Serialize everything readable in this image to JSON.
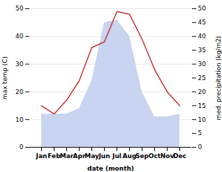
{
  "chart_data": {
    "type": "line",
    "xlabel": "date (month)",
    "ylabel": "max temp (C)",
    "y2label": "med. precipitation (kg/m2)",
    "categories": [
      "Jan",
      "Feb",
      "Mar",
      "Apr",
      "May",
      "Jun",
      "Jul",
      "Aug",
      "Sep",
      "Oct",
      "Nov",
      "Dec"
    ],
    "series": [
      {
        "type": "area",
        "axis": "y2",
        "color": "#c8d4f0",
        "values": [
          12,
          12,
          12,
          14,
          24,
          45,
          46,
          40,
          20,
          11,
          11,
          12
        ]
      },
      {
        "type": "line",
        "color": "#c83030",
        "values": [
          15,
          12,
          17,
          24,
          36,
          38,
          49,
          48,
          39,
          28,
          20,
          15
        ]
      }
    ],
    "ylim": [
      0,
      50
    ],
    "yticks": [
      0,
      10,
      20,
      30,
      40,
      50
    ],
    "y2lim": [
      0,
      50
    ],
    "y2ticks": [
      0,
      5,
      10,
      15,
      20,
      25,
      30,
      35,
      40,
      45,
      50
    ],
    "grid": true
  }
}
